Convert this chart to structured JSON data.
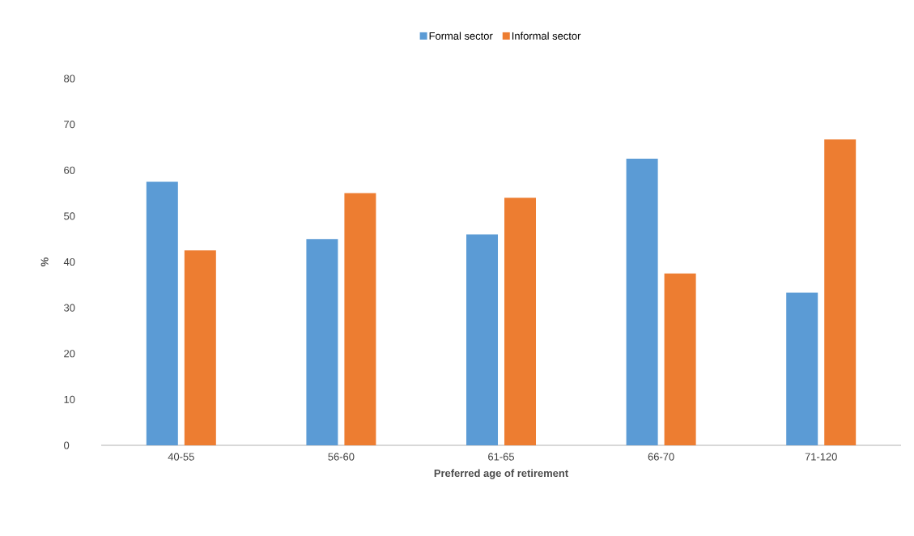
{
  "chart_data": {
    "type": "bar",
    "xlabel": "Preferred age of retirement",
    "ylabel": "%",
    "categories": [
      "40-55",
      "56-60",
      "61-65",
      "66-70",
      "71-120"
    ],
    "series": [
      {
        "name": "Formal sector",
        "color": "#5b9bd5",
        "values": [
          57.5,
          45,
          46,
          62.5,
          33.3
        ]
      },
      {
        "name": "Informal sector",
        "color": "#ed7d31",
        "values": [
          42.5,
          55,
          54,
          37.5,
          66.7
        ]
      }
    ],
    "ylim": [
      0,
      80
    ],
    "yticks": [
      0,
      10,
      20,
      30,
      40,
      50,
      60,
      70,
      80
    ],
    "grid": false,
    "legend": "top"
  }
}
